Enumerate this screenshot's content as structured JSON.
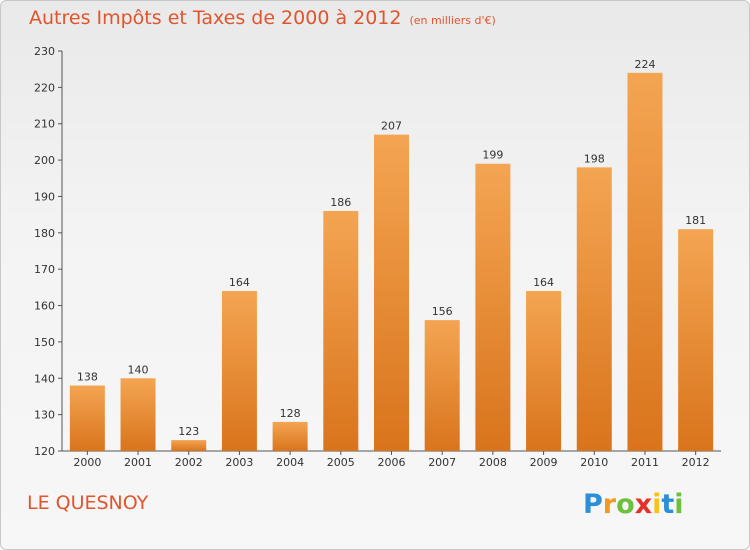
{
  "title": "Autres Impôts et Taxes de 2000 à 2012",
  "subtitle": "(en milliers d'€)",
  "commune": "LE QUESNOY",
  "logo": {
    "letters": [
      "P",
      "r",
      "o",
      "x",
      "i",
      "t",
      "i"
    ],
    "colors": [
      "#2a8fd6",
      "#f29a1d",
      "#6cc03c",
      "#e4322a",
      "#f6c21b",
      "#2a8fd6",
      "#6cc03c"
    ]
  },
  "colors": {
    "accent": "#e0552c",
    "bar_top": "#f4a552",
    "bar_bottom": "#d9741c"
  },
  "chart_data": {
    "type": "bar",
    "title": "Autres Impôts et Taxes de 2000 à 2012",
    "subtitle": "(en milliers d'€)",
    "xlabel": "",
    "ylabel": "",
    "categories": [
      "2000",
      "2001",
      "2002",
      "2003",
      "2004",
      "2005",
      "2006",
      "2007",
      "2008",
      "2009",
      "2010",
      "2011",
      "2012"
    ],
    "values": [
      138,
      140,
      123,
      164,
      128,
      186,
      207,
      156,
      199,
      164,
      198,
      224,
      181
    ],
    "ylim": [
      120,
      230
    ],
    "yticks": [
      120,
      130,
      140,
      150,
      160,
      170,
      180,
      190,
      200,
      210,
      220,
      230
    ],
    "grid": false,
    "legend": "none"
  }
}
